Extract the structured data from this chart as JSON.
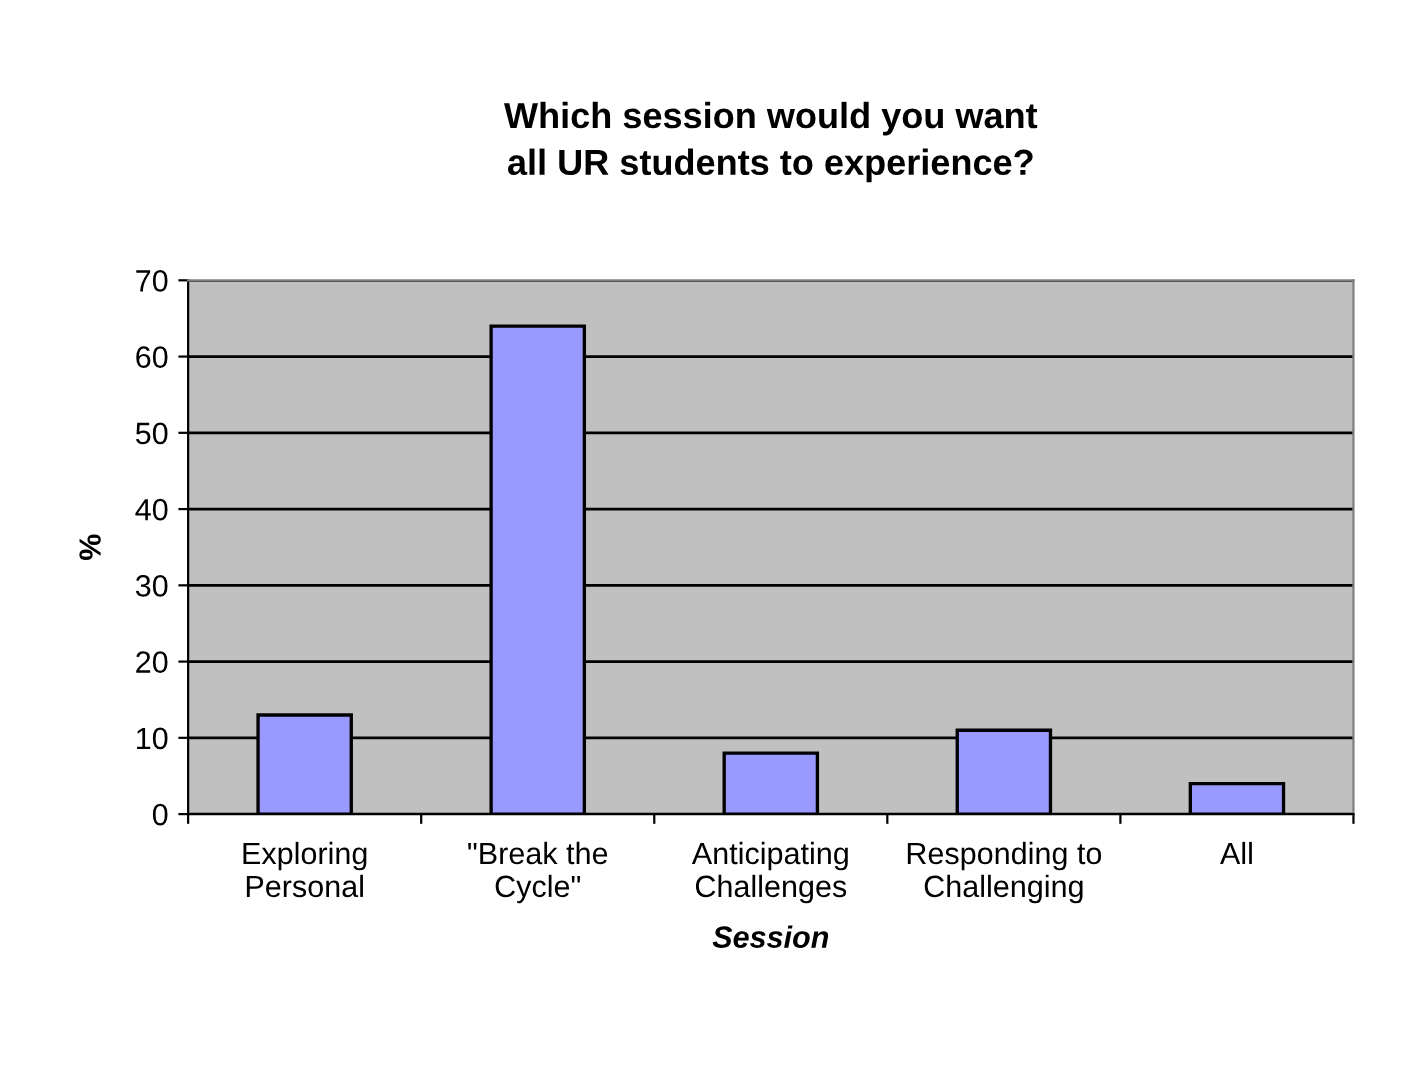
{
  "chart_data": {
    "type": "bar",
    "title": "Which session would you want\nall UR students to experience?",
    "xlabel": "Session",
    "ylabel": "%",
    "categories": [
      "Exploring\nPersonal",
      "\"Break the\nCycle\"",
      "Anticipating\nChallenges",
      "Responding to\nChallenging",
      "All"
    ],
    "series": [
      {
        "color": "#9999ff",
        "values": [
          13,
          64,
          8,
          11,
          4
        ]
      }
    ],
    "ylim": [
      0,
      70
    ],
    "yticks": [
      0,
      10,
      20,
      30,
      40,
      50,
      60,
      70
    ],
    "grid": "y",
    "legend": false
  }
}
